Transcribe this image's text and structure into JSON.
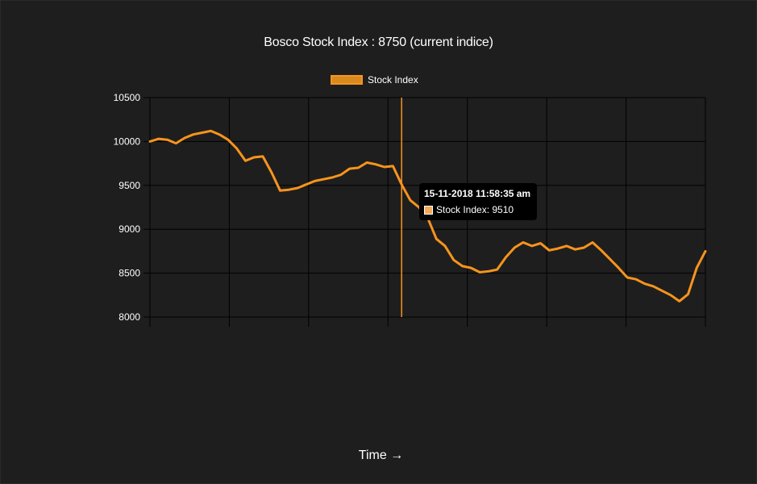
{
  "title": "Bosco Stock Index : 8750   (current indice)",
  "xaxis_label": "Time →",
  "colors": {
    "line": "#f7941d",
    "grid": "#000000",
    "background": "#1e1e1e"
  },
  "tooltip": {
    "title": "15-11-2018 11:58:35 am",
    "label": "Stock Index: 9510"
  },
  "chart_data": {
    "type": "line",
    "title": "Bosco Stock Index : 8750   (current indice)",
    "xlabel": "Time →",
    "ylabel": "",
    "ylim": [
      8000,
      10500
    ],
    "yticks": [
      10500,
      10000,
      9500,
      9000,
      8500,
      8000
    ],
    "grid": true,
    "legend_position": "top-center",
    "series": [
      {
        "name": "Stock Index",
        "color": "#f7941d",
        "values": [
          10000,
          10030,
          10020,
          9980,
          10040,
          10080,
          10100,
          10120,
          10080,
          10020,
          9920,
          9780,
          9820,
          9830,
          9650,
          9440,
          9450,
          9470,
          9510,
          9550,
          9570,
          9590,
          9620,
          9690,
          9700,
          9760,
          9740,
          9710,
          9720,
          9510,
          9330,
          9250,
          9130,
          8890,
          8810,
          8650,
          8580,
          8560,
          8510,
          8520,
          8540,
          8680,
          8790,
          8850,
          8810,
          8840,
          8760,
          8780,
          8810,
          8770,
          8790,
          8850,
          8760,
          8660,
          8560,
          8450,
          8430,
          8380,
          8350,
          8300,
          8250,
          8180,
          8260,
          8560,
          8750
        ]
      }
    ],
    "hover_index": 29
  }
}
